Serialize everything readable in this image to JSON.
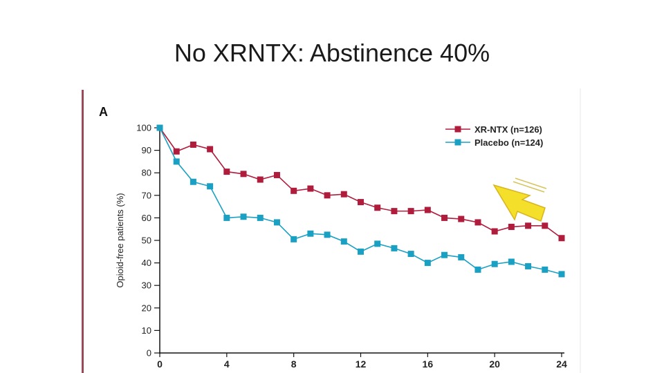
{
  "slide": {
    "title": "No XRNTX: Abstinence 40%"
  },
  "colors": {
    "xrntx": "#b01c3c",
    "placebo": "#1aa0c2",
    "axis": "#111111",
    "arrow": "#f4df2a"
  },
  "chart_data": {
    "type": "line",
    "panel_label": "A",
    "ylabel": "Opioid-free patients (%)",
    "xlabel": "",
    "x": [
      0,
      1,
      2,
      3,
      4,
      5,
      6,
      7,
      8,
      9,
      10,
      11,
      12,
      13,
      14,
      15,
      16,
      17,
      18,
      19,
      20,
      21,
      22,
      23,
      24
    ],
    "xticks": [
      0,
      4,
      8,
      12,
      16,
      20,
      24
    ],
    "yticks": [
      0,
      10,
      20,
      30,
      40,
      50,
      60,
      70,
      80,
      90,
      100
    ],
    "xlim": [
      0,
      24
    ],
    "ylim": [
      0,
      100
    ],
    "grid": false,
    "legend": "top-right",
    "series": [
      {
        "name": "XR-NTX (n=126)",
        "color_key": "xrntx",
        "values": [
          100,
          89.5,
          92.5,
          90.5,
          80.5,
          79.5,
          77,
          79,
          72,
          73,
          70,
          70.5,
          67,
          64.5,
          63,
          63,
          63.5,
          60,
          59.5,
          58,
          54,
          56,
          56.5,
          56.5,
          51
        ]
      },
      {
        "name": "Placebo (n=124)",
        "color_key": "placebo",
        "values": [
          100,
          85,
          76,
          74,
          60,
          60.5,
          60,
          58,
          50.5,
          53,
          52.5,
          49.5,
          45,
          48.5,
          46.5,
          44,
          40,
          43.5,
          42.5,
          37,
          39.5,
          40.5,
          38.5,
          37,
          35
        ]
      }
    ],
    "annotations": [
      {
        "type": "arrow",
        "points_to": "XR-NTX at week 20"
      }
    ]
  }
}
